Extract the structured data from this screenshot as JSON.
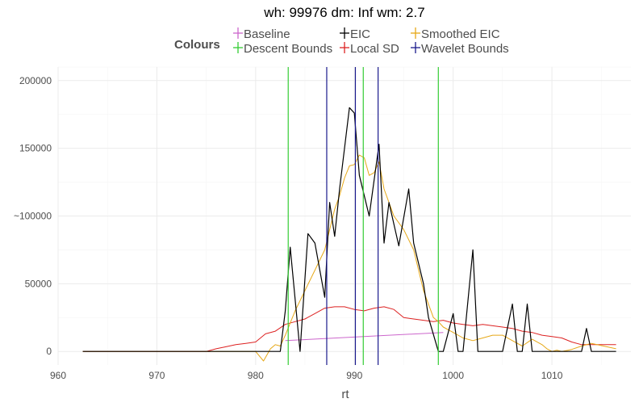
{
  "chart_data": {
    "type": "line",
    "title": "wh: 99976 dm: Inf wm: 2.7",
    "xlabel": "rt",
    "ylabel": "",
    "xlim": [
      960,
      1018
    ],
    "ylim": [
      -10000,
      210000
    ],
    "x_ticks": [
      960,
      970,
      980,
      990,
      1000,
      1010
    ],
    "x_tick_labels": [
      "960",
      "970",
      "980",
      "990",
      "1000",
      "1010"
    ],
    "y_ticks": [
      0,
      50000,
      100000,
      150000,
      200000
    ],
    "y_tick_labels": [
      "0",
      "50000",
      "~100000",
      "150000",
      "200000"
    ],
    "legend": {
      "title": "Colours",
      "position": "top",
      "entries": [
        {
          "label": "Baseline",
          "color": "#cc66cc"
        },
        {
          "label": "Descent Bounds",
          "color": "#33cc33"
        },
        {
          "label": "EIC",
          "color": "#000000"
        },
        {
          "label": "Local SD",
          "color": "#dd2222"
        },
        {
          "label": "Smoothed EIC",
          "color": "#e6a817"
        },
        {
          "label": "Wavelet Bounds",
          "color": "#1a1a8c"
        }
      ]
    },
    "series": [
      {
        "name": "EIC",
        "color": "#000000",
        "x": [
          962.5,
          980.9,
          981.5,
          982.5,
          983.0,
          983.5,
          984.5,
          985.3,
          986.0,
          987.0,
          987.5,
          988.0,
          988.5,
          989.5,
          990.0,
          990.5,
          991.5,
          992.5,
          993.0,
          993.5,
          994.5,
          995.5,
          996.0,
          997.0,
          997.5,
          998.5,
          999.0,
          1000.0,
          1000.5,
          1001.0,
          1002.0,
          1002.5,
          1003.0,
          1004.5,
          1005.0,
          1006.0,
          1006.5,
          1007.0,
          1007.5,
          1008.0,
          1009.0,
          1010.5,
          1013.0,
          1013.5,
          1014.0,
          1014.5,
          1016.5
        ],
        "y": [
          0,
          0,
          0,
          0,
          30000,
          77000,
          0,
          87000,
          80000,
          40000,
          110000,
          85000,
          120000,
          180000,
          176000,
          130000,
          100000,
          153000,
          80000,
          110000,
          78000,
          120000,
          80000,
          50000,
          25000,
          0,
          0,
          28000,
          0,
          0,
          75000,
          0,
          0,
          0,
          0,
          35000,
          0,
          0,
          35000,
          0,
          0,
          0,
          0,
          17000,
          0,
          0,
          0
        ]
      },
      {
        "name": "Smoothed EIC",
        "color": "#e6a817",
        "x": [
          962.5,
          980.0,
          980.8,
          981.5,
          982.0,
          982.5,
          983.0,
          984.0,
          985.0,
          986.0,
          987.0,
          988.0,
          988.5,
          989.0,
          989.5,
          990.0,
          990.5,
          991.0,
          991.5,
          992.0,
          992.5,
          993.0,
          994.0,
          995.0,
          996.0,
          997.0,
          998.0,
          998.5,
          999.0,
          1000.0,
          1001.0,
          1002.0,
          1003.0,
          1004.0,
          1005.0,
          1006.0,
          1007.0,
          1008.0,
          1009.0,
          1009.5,
          1010.0,
          1010.5,
          1011.0,
          1012.0,
          1013.0,
          1014.0,
          1016.5
        ],
        "y": [
          0,
          0,
          -7000,
          2000,
          5000,
          4000,
          12000,
          30000,
          45000,
          60000,
          75000,
          105000,
          115000,
          128000,
          137000,
          138000,
          145000,
          143000,
          130000,
          132000,
          140000,
          120000,
          100000,
          90000,
          75000,
          45000,
          25000,
          22000,
          18000,
          14000,
          10000,
          8000,
          10000,
          12000,
          12000,
          8000,
          4000,
          9000,
          5000,
          2000,
          0,
          1000,
          0,
          1500,
          4000,
          6000,
          2000
        ]
      },
      {
        "name": "Local SD",
        "color": "#dd2222",
        "x": [
          962.5,
          975.0,
          976.0,
          977.0,
          978.0,
          979.0,
          980.0,
          981.0,
          982.0,
          983.0,
          984.0,
          985.0,
          986.0,
          987.0,
          988.0,
          989.0,
          990.0,
          991.0,
          992.0,
          993.0,
          994.0,
          995.0,
          996.0,
          997.0,
          998.0,
          999.0,
          1000.0,
          1001.0,
          1002.0,
          1003.0,
          1004.0,
          1005.0,
          1006.0,
          1007.0,
          1008.0,
          1009.0,
          1010.0,
          1011.0,
          1012.0,
          1013.0,
          1014.0,
          1015.0,
          1016.5
        ],
        "y": [
          0,
          0,
          2000,
          3500,
          5000,
          6000,
          7000,
          13000,
          15000,
          20000,
          22000,
          24000,
          28000,
          32000,
          33000,
          33000,
          31000,
          30000,
          32000,
          33000,
          31000,
          25000,
          24000,
          23000,
          22000,
          23000,
          21000,
          20000,
          19000,
          20000,
          19000,
          18000,
          17000,
          15000,
          14000,
          12000,
          11000,
          10000,
          7000,
          5000,
          5000,
          5000,
          5000
        ]
      },
      {
        "name": "Baseline",
        "color": "#cc66cc",
        "x": [
          983.0,
          999.0
        ],
        "y": [
          8000,
          14000
        ]
      }
    ],
    "vlines": [
      {
        "name": "Descent Bounds",
        "color": "#33cc33",
        "x": [
          983.3,
          990.9,
          998.5
        ]
      },
      {
        "name": "Wavelet Bounds",
        "color": "#1a1a8c",
        "x": [
          987.2,
          990.1,
          992.4
        ]
      }
    ]
  }
}
